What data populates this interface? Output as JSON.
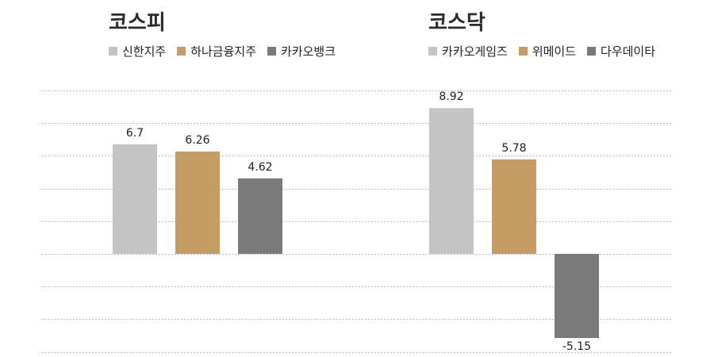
{
  "chart_data": [
    {
      "type": "bar",
      "title": "코스피",
      "categories": [
        "신한지주",
        "하나금융지주",
        "카카오뱅크"
      ],
      "values": [
        6.7,
        6.26,
        4.62
      ],
      "value_labels": [
        "6.7",
        "6.26",
        "4.62"
      ],
      "colors": [
        "#c4c4c4",
        "#c49c64",
        "#7a7a7a"
      ],
      "ylim": [
        -6,
        10
      ],
      "grid": true,
      "legend": "top"
    },
    {
      "type": "bar",
      "title": "코스닥",
      "categories": [
        "카카오게임즈",
        "위메이드",
        "다우데이타"
      ],
      "values": [
        8.92,
        5.78,
        -5.15
      ],
      "value_labels": [
        "8.92",
        "5.78",
        "-5.15"
      ],
      "colors": [
        "#c4c4c4",
        "#c49c64",
        "#7a7a7a"
      ],
      "ylim": [
        -6,
        10
      ],
      "grid": true,
      "legend": "top"
    }
  ]
}
